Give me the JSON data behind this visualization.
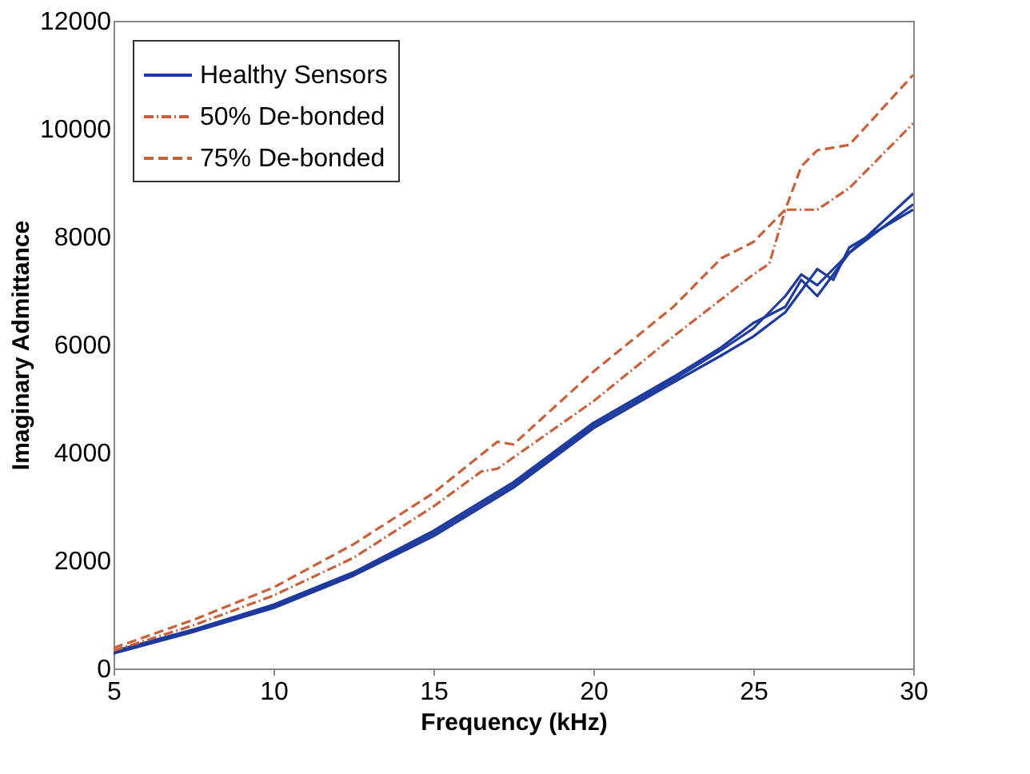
{
  "chart_data": {
    "type": "line",
    "xlabel": "Frequency (kHz)",
    "ylabel": "Imaginary Admittance",
    "xlim": [
      5,
      30
    ],
    "xticks": [
      5,
      10,
      15,
      20,
      25,
      30
    ],
    "ylim": [
      0,
      12000
    ],
    "yticks": [
      0,
      2000,
      4000,
      6000,
      8000,
      10000,
      12000
    ],
    "grid": false,
    "legend": "top left",
    "series": [
      {
        "name": "Healthy Sensors",
        "color": "#1f3a9e",
        "line_style": "solid",
        "x": [
          5,
          7.5,
          10,
          12.5,
          15,
          17.5,
          20,
          22.5,
          24,
          25,
          26,
          26.5,
          27,
          27.5,
          28,
          30
        ],
        "values": [
          300,
          700,
          1150,
          1750,
          2500,
          3400,
          4500,
          5350,
          5900,
          6300,
          6900,
          7300,
          7100,
          7400,
          7700,
          8600
        ]
      },
      {
        "color": "#1f3a9e",
        "line_style": "solid",
        "x": [
          5,
          7.5,
          10,
          12.5,
          15,
          17.5,
          20,
          22.5,
          24,
          25,
          26,
          26.5,
          27,
          27.5,
          28,
          30
        ],
        "values": [
          280,
          680,
          1120,
          1720,
          2450,
          3350,
          4450,
          5300,
          5800,
          6150,
          6600,
          7000,
          7400,
          7200,
          7800,
          8500
        ]
      },
      {
        "color": "#1f3a9e",
        "line_style": "solid",
        "x": [
          5,
          7.5,
          10,
          12.5,
          15,
          17.5,
          20,
          22.5,
          24,
          25,
          26,
          26.5,
          27,
          27.5,
          28,
          30
        ],
        "values": [
          320,
          720,
          1180,
          1780,
          2550,
          3450,
          4550,
          5400,
          5950,
          6400,
          6700,
          7200,
          6900,
          7300,
          7700,
          8800
        ]
      },
      {
        "name": "50% De-bonded",
        "color": "#c8613a",
        "line_style": "dashdot",
        "x": [
          5,
          7.5,
          10,
          12.5,
          15,
          16.5,
          17,
          20,
          22.5,
          25,
          25.5,
          26,
          27,
          28,
          30
        ],
        "values": [
          330,
          800,
          1350,
          2050,
          3000,
          3650,
          3700,
          4950,
          6150,
          7300,
          7500,
          8500,
          8500,
          8900,
          10100
        ]
      },
      {
        "name": "75% De-bonded",
        "color": "#c8613a",
        "line_style": "dashed",
        "x": [
          5,
          7.5,
          10,
          12.5,
          15,
          17,
          17.5,
          20,
          22.5,
          24,
          25,
          26,
          26.5,
          27,
          28,
          30
        ],
        "values": [
          380,
          900,
          1500,
          2300,
          3250,
          4200,
          4150,
          5500,
          6700,
          7600,
          7900,
          8500,
          9300,
          9600,
          9700,
          11000
        ]
      }
    ]
  }
}
